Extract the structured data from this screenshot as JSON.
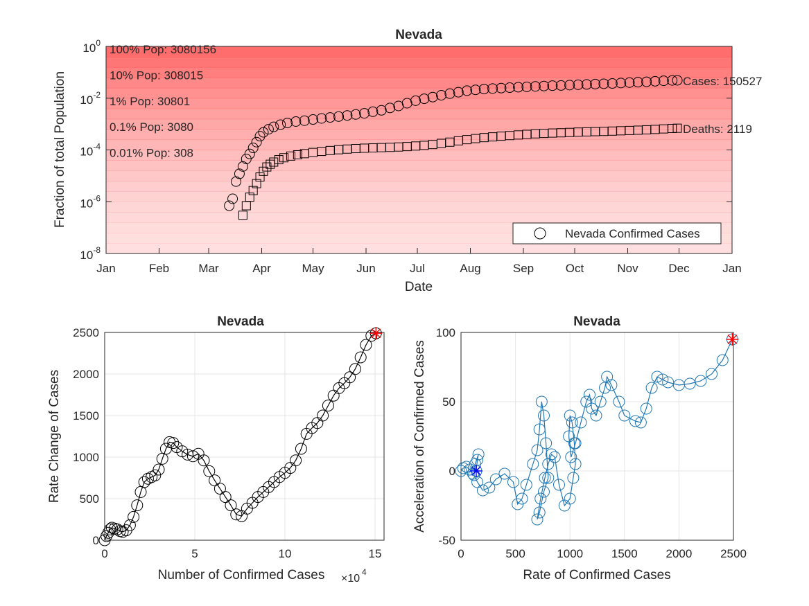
{
  "chart_data": [
    {
      "type": "scatter",
      "title": "Nevada",
      "xlabel": "Date",
      "ylabel": "Fraction of total Population",
      "yscale": "log",
      "ylim": [
        1e-08,
        1
      ],
      "xlim": [
        "2020-01-01",
        "2021-01-01"
      ],
      "x_tick_labels": [
        "Jan",
        "Feb",
        "Mar",
        "Apr",
        "May",
        "Jun",
        "Jul",
        "Aug",
        "Sep",
        "Oct",
        "Nov",
        "Dec",
        "Jan"
      ],
      "y_tick_labels": [
        {
          "base": "10",
          "exp": "0"
        },
        {
          "base": "10",
          "exp": "-2"
        },
        {
          "base": "10",
          "exp": "-4"
        },
        {
          "base": "10",
          "exp": "-6"
        },
        {
          "base": "10",
          "exp": "-8"
        }
      ],
      "bands": [
        {
          "fraction": 1,
          "label": "100% Pop: 3080156"
        },
        {
          "fraction": 0.1,
          "label": "10% Pop: 308015"
        },
        {
          "fraction": 0.01,
          "label": "1% Pop: 30801"
        },
        {
          "fraction": 0.001,
          "label": "0.1% Pop: 3080"
        },
        {
          "fraction": 0.0001,
          "label": "0.01% Pop: 308"
        }
      ],
      "band_color": "#ff4d4d",
      "legend": {
        "label": "Nevada Confirmed Cases",
        "placement": "bottom-right"
      },
      "series": [
        {
          "name": "Nevada Confirmed Cases",
          "marker": "circle",
          "end_label": "Cases: 150527",
          "points": [
            [
              "2020-03-13",
              7e-07
            ],
            [
              "2020-03-15",
              1.3e-06
            ],
            [
              "2020-03-17",
              6e-06
            ],
            [
              "2020-03-19",
              1.2e-05
            ],
            [
              "2020-03-21",
              2.3e-05
            ],
            [
              "2020-03-23",
              4.5e-05
            ],
            [
              "2020-03-25",
              7e-05
            ],
            [
              "2020-03-27",
              0.00012
            ],
            [
              "2020-03-29",
              0.0002
            ],
            [
              "2020-03-31",
              0.00034
            ],
            [
              "2020-04-02",
              0.00048
            ],
            [
              "2020-04-05",
              0.00063
            ],
            [
              "2020-04-08",
              0.00078
            ],
            [
              "2020-04-12",
              0.00095
            ],
            [
              "2020-04-16",
              0.0011
            ],
            [
              "2020-04-21",
              0.00125
            ],
            [
              "2020-04-26",
              0.00135
            ],
            [
              "2020-05-01",
              0.0015
            ],
            [
              "2020-05-06",
              0.00165
            ],
            [
              "2020-05-11",
              0.0018
            ],
            [
              "2020-05-16",
              0.00195
            ],
            [
              "2020-05-21",
              0.00215
            ],
            [
              "2020-05-26",
              0.00235
            ],
            [
              "2020-05-31",
              0.0026
            ],
            [
              "2020-06-05",
              0.003
            ],
            [
              "2020-06-10",
              0.0034
            ],
            [
              "2020-06-15",
              0.0042
            ],
            [
              "2020-06-20",
              0.005
            ],
            [
              "2020-06-25",
              0.0064
            ],
            [
              "2020-06-30",
              0.008
            ],
            [
              "2020-07-05",
              0.0095
            ],
            [
              "2020-07-10",
              0.011
            ],
            [
              "2020-07-15",
              0.013
            ],
            [
              "2020-07-20",
              0.015
            ],
            [
              "2020-07-25",
              0.017
            ],
            [
              "2020-07-30",
              0.0195
            ],
            [
              "2020-08-04",
              0.021
            ],
            [
              "2020-08-09",
              0.0225
            ],
            [
              "2020-08-14",
              0.0235
            ],
            [
              "2020-08-19",
              0.0245
            ],
            [
              "2020-08-24",
              0.0255
            ],
            [
              "2020-08-29",
              0.0265
            ],
            [
              "2020-09-03",
              0.0275
            ],
            [
              "2020-09-08",
              0.0285
            ],
            [
              "2020-09-13",
              0.0295
            ],
            [
              "2020-09-18",
              0.0305
            ],
            [
              "2020-09-23",
              0.031
            ],
            [
              "2020-09-28",
              0.032
            ],
            [
              "2020-10-03",
              0.033
            ],
            [
              "2020-10-08",
              0.034
            ],
            [
              "2020-10-13",
              0.035
            ],
            [
              "2020-10-18",
              0.036
            ],
            [
              "2020-10-23",
              0.037
            ],
            [
              "2020-10-28",
              0.0385
            ],
            [
              "2020-11-02",
              0.04
            ],
            [
              "2020-11-07",
              0.0415
            ],
            [
              "2020-11-12",
              0.043
            ],
            [
              "2020-11-17",
              0.045
            ],
            [
              "2020-11-22",
              0.047
            ],
            [
              "2020-11-27",
              0.0485
            ],
            [
              "2020-11-30",
              0.049
            ]
          ]
        },
        {
          "name": "Nevada Deaths",
          "marker": "square",
          "end_label": "Deaths: 2119",
          "points": [
            [
              "2020-03-21",
              3e-07
            ],
            [
              "2020-03-23",
              7e-07
            ],
            [
              "2020-03-25",
              1.5e-06
            ],
            [
              "2020-03-27",
              2.7e-06
            ],
            [
              "2020-03-29",
              5e-06
            ],
            [
              "2020-03-31",
              9e-06
            ],
            [
              "2020-04-02",
              1.5e-05
            ],
            [
              "2020-04-04",
              2.2e-05
            ],
            [
              "2020-04-06",
              2.8e-05
            ],
            [
              "2020-04-08",
              3.4e-05
            ],
            [
              "2020-04-11",
              4.2e-05
            ],
            [
              "2020-04-14",
              5e-05
            ],
            [
              "2020-04-18",
              5.8e-05
            ],
            [
              "2020-04-22",
              6.5e-05
            ],
            [
              "2020-04-26",
              7.2e-05
            ],
            [
              "2020-05-01",
              8e-05
            ],
            [
              "2020-05-06",
              8.8e-05
            ],
            [
              "2020-05-11",
              9.5e-05
            ],
            [
              "2020-05-16",
              0.000102
            ],
            [
              "2020-05-21",
              0.000108
            ],
            [
              "2020-05-26",
              0.000113
            ],
            [
              "2020-05-31",
              0.000117
            ],
            [
              "2020-06-05",
              0.00012
            ],
            [
              "2020-06-10",
              0.000123
            ],
            [
              "2020-06-15",
              0.000126
            ],
            [
              "2020-06-20",
              0.00013
            ],
            [
              "2020-06-25",
              0.000135
            ],
            [
              "2020-06-30",
              0.000142
            ],
            [
              "2020-07-05",
              0.00015
            ],
            [
              "2020-07-10",
              0.000162
            ],
            [
              "2020-07-15",
              0.00018
            ],
            [
              "2020-07-20",
              0.0002
            ],
            [
              "2020-07-25",
              0.000225
            ],
            [
              "2020-07-30",
              0.00025
            ],
            [
              "2020-08-04",
              0.000275
            ],
            [
              "2020-08-09",
              0.0003
            ],
            [
              "2020-08-14",
              0.00032
            ],
            [
              "2020-08-19",
              0.00034
            ],
            [
              "2020-08-24",
              0.00036
            ],
            [
              "2020-08-29",
              0.00038
            ],
            [
              "2020-09-03",
              0.0004
            ],
            [
              "2020-09-08",
              0.00042
            ],
            [
              "2020-09-13",
              0.000435
            ],
            [
              "2020-09-18",
              0.00045
            ],
            [
              "2020-09-23",
              0.00046
            ],
            [
              "2020-09-28",
              0.000475
            ],
            [
              "2020-10-03",
              0.00049
            ],
            [
              "2020-10-08",
              0.0005
            ],
            [
              "2020-10-13",
              0.00051
            ],
            [
              "2020-10-18",
              0.00052
            ],
            [
              "2020-10-23",
              0.000535
            ],
            [
              "2020-10-28",
              0.00055
            ],
            [
              "2020-11-02",
              0.000565
            ],
            [
              "2020-11-07",
              0.00058
            ],
            [
              "2020-11-12",
              0.0006
            ],
            [
              "2020-11-17",
              0.00062
            ],
            [
              "2020-11-22",
              0.00065
            ],
            [
              "2020-11-27",
              0.000675
            ],
            [
              "2020-11-30",
              0.00069
            ]
          ]
        }
      ]
    },
    {
      "type": "line",
      "title": "Nevada",
      "xlabel": "Number of Confirmed Cases",
      "x_exponent": {
        "base": "×10",
        "exp": "4"
      },
      "ylabel": "Rate Change of Cases",
      "xlim": [
        0,
        15.5
      ],
      "ylim": [
        0,
        2500
      ],
      "x_ticks": [
        0,
        5,
        10,
        15
      ],
      "y_ticks": [
        0,
        500,
        1000,
        1500,
        2000,
        2500
      ],
      "grid": true,
      "color": "#000000",
      "end_marker": {
        "x": 15.05,
        "y": 2490,
        "color": "#ff0000"
      },
      "x": [
        0,
        0.1,
        0.2,
        0.3,
        0.4,
        0.55,
        0.7,
        0.85,
        1.0,
        1.2,
        1.4,
        1.6,
        1.8,
        2.0,
        2.2,
        2.4,
        2.6,
        2.8,
        3.0,
        3.2,
        3.4,
        3.6,
        3.8,
        4.0,
        4.3,
        4.6,
        4.9,
        5.2,
        5.5,
        5.8,
        6.1,
        6.4,
        6.7,
        7.0,
        7.3,
        7.6,
        7.9,
        8.2,
        8.5,
        8.8,
        9.1,
        9.4,
        9.7,
        10.0,
        10.3,
        10.6,
        10.9,
        11.2,
        11.5,
        11.8,
        12.1,
        12.4,
        12.7,
        13.0,
        13.3,
        13.6,
        13.9,
        14.2,
        14.5,
        14.8,
        15.05
      ],
      "y": [
        0,
        50,
        90,
        130,
        150,
        140,
        130,
        110,
        100,
        120,
        180,
        280,
        420,
        580,
        700,
        740,
        760,
        780,
        850,
        980,
        1100,
        1180,
        1170,
        1120,
        1070,
        1030,
        1010,
        1040,
        960,
        830,
        720,
        620,
        520,
        420,
        310,
        290,
        380,
        450,
        520,
        580,
        640,
        700,
        760,
        810,
        870,
        960,
        1100,
        1280,
        1350,
        1410,
        1500,
        1620,
        1740,
        1830,
        1890,
        1960,
        2060,
        2200,
        2350,
        2460,
        2490
      ]
    },
    {
      "type": "line",
      "title": "Nevada",
      "xlabel": "Rate of Confirmed Cases",
      "ylabel": "Acceleration of Confirmed Cases",
      "xlim": [
        0,
        2500
      ],
      "ylim": [
        -50,
        100
      ],
      "x_ticks": [
        0,
        500,
        1000,
        1500,
        2000,
        2500
      ],
      "y_ticks": [
        -50,
        0,
        50,
        100
      ],
      "grid": true,
      "color": "#1f77b4",
      "start_marker": {
        "x": 140,
        "y": 0,
        "color": "#0000ff"
      },
      "end_marker": {
        "x": 2490,
        "y": 95,
        "color": "#ff0000"
      },
      "x": [
        0,
        20,
        50,
        80,
        110,
        140,
        150,
        160,
        130,
        120,
        150,
        200,
        260,
        320,
        400,
        480,
        520,
        560,
        600,
        660,
        700,
        720,
        740,
        760,
        780,
        800,
        760,
        720,
        700,
        730,
        770,
        800,
        830,
        860,
        900,
        950,
        1000,
        1030,
        1050,
        1040,
        1020,
        1000,
        990,
        1010,
        1050,
        1100,
        1150,
        1180,
        1200,
        1240,
        1280,
        1320,
        1340,
        1380,
        1450,
        1500,
        1600,
        1650,
        1700,
        1750,
        1800,
        1850,
        1900,
        2000,
        2100,
        2200,
        2300,
        2400,
        2490
      ],
      "y": [
        0,
        2,
        3,
        1,
        -2,
        0,
        8,
        12,
        5,
        -3,
        -8,
        -14,
        -12,
        -6,
        -2,
        -8,
        -24,
        -20,
        -10,
        5,
        15,
        30,
        50,
        40,
        20,
        -5,
        -15,
        -30,
        -35,
        -20,
        -5,
        5,
        12,
        10,
        -10,
        -25,
        -20,
        -5,
        5,
        20,
        35,
        40,
        25,
        10,
        20,
        35,
        50,
        55,
        45,
        40,
        50,
        60,
        68,
        62,
        50,
        40,
        36,
        35,
        45,
        60,
        68,
        66,
        64,
        62,
        63,
        65,
        70,
        80,
        95
      ]
    }
  ]
}
